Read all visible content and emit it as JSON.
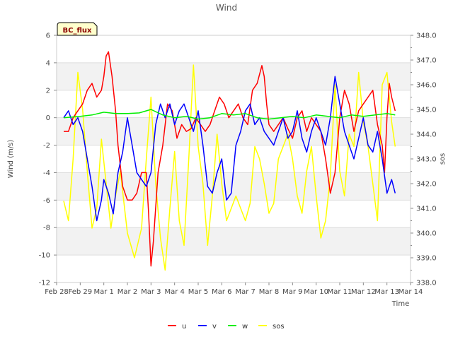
{
  "chart_data": {
    "type": "line",
    "title": "Wind",
    "site_badge": "BC_flux",
    "xlabel": "Time",
    "ylabel_left": "Wind (m/s)",
    "ylabel_right": "sos",
    "ylim_left": [
      -12,
      6
    ],
    "ylim_right": [
      338.0,
      348.0
    ],
    "xlim_days": [
      0,
      15
    ],
    "x_ticks": [
      {
        "day": 0,
        "label": "Feb 28"
      },
      {
        "day": 1,
        "label": "Feb 29"
      },
      {
        "day": 2,
        "label": "Mar 1"
      },
      {
        "day": 3,
        "label": "Mar 2"
      },
      {
        "day": 4,
        "label": "Mar 3"
      },
      {
        "day": 5,
        "label": "Mar 4"
      },
      {
        "day": 6,
        "label": "Mar 5"
      },
      {
        "day": 7,
        "label": "Mar 6"
      },
      {
        "day": 8,
        "label": "Mar 7"
      },
      {
        "day": 9,
        "label": "Mar 8"
      },
      {
        "day": 10,
        "label": "Mar 9"
      },
      {
        "day": 11,
        "label": "Mar 10"
      },
      {
        "day": 12,
        "label": "Mar 11"
      },
      {
        "day": 13,
        "label": "Mar 12"
      },
      {
        "day": 14,
        "label": "Mar 13"
      },
      {
        "day": 15,
        "label": "Mar 14"
      }
    ],
    "y_ticks_left": [
      "-12",
      "-10",
      "-8",
      "-6",
      "-4",
      "-2",
      "0",
      "2",
      "4",
      "6"
    ],
    "y_ticks_right": [
      "338.0",
      "339.0",
      "340.0",
      "341.0",
      "342.0",
      "343.0",
      "344.0",
      "345.0",
      "346.0",
      "347.0",
      "348.0"
    ],
    "series": [
      {
        "name": "u",
        "color": "#ff0000",
        "axis": "left",
        "x": [
          0.3,
          0.5,
          0.7,
          0.9,
          1.1,
          1.3,
          1.5,
          1.7,
          1.9,
          2.0,
          2.1,
          2.2,
          2.35,
          2.5,
          2.6,
          2.8,
          3.0,
          3.2,
          3.4,
          3.6,
          3.8,
          3.9,
          4.0,
          4.1,
          4.3,
          4.5,
          4.7,
          4.9,
          5.1,
          5.3,
          5.5,
          5.7,
          5.9,
          6.1,
          6.3,
          6.5,
          6.7,
          6.9,
          7.1,
          7.3,
          7.5,
          7.7,
          7.9,
          8.1,
          8.3,
          8.5,
          8.7,
          8.8,
          8.9,
          9.0,
          9.2,
          9.4,
          9.6,
          9.8,
          10.0,
          10.2,
          10.4,
          10.6,
          10.8,
          11.0,
          11.2,
          11.4,
          11.6,
          11.8,
          12.0,
          12.2,
          12.4,
          12.6,
          12.8,
          13.0,
          13.2,
          13.4,
          13.6,
          13.8,
          13.9,
          14.0,
          14.1,
          14.2,
          14.35
        ],
        "y": [
          -1,
          -1,
          0,
          0.5,
          1,
          2,
          2.5,
          1.5,
          2,
          3,
          4.5,
          4.8,
          3,
          0.5,
          -2,
          -5,
          -6,
          -6,
          -5.5,
          -4,
          -4,
          -7,
          -10.8,
          -9,
          -4,
          -2,
          1,
          0.5,
          -1.5,
          -0.5,
          -1,
          -0.8,
          0,
          -0.5,
          -1,
          -0.5,
          0.5,
          1.5,
          1,
          0,
          0.5,
          1,
          0,
          -0.5,
          2,
          2.5,
          3.8,
          3,
          1,
          -0.5,
          -1,
          -0.5,
          0,
          -0.8,
          -1.5,
          0,
          0.5,
          -1,
          0,
          -0.5,
          -1,
          -3,
          -5.5,
          -4,
          0,
          2,
          1,
          -1,
          0.5,
          1,
          1.5,
          2,
          -0.5,
          -2,
          -4,
          0,
          2.5,
          1.5,
          0.5
        ]
      },
      {
        "name": "v",
        "color": "#0000ff",
        "axis": "left",
        "x": [
          0.3,
          0.5,
          0.7,
          0.9,
          1.1,
          1.3,
          1.5,
          1.7,
          1.9,
          2.0,
          2.2,
          2.4,
          2.6,
          2.8,
          3.0,
          3.2,
          3.4,
          3.6,
          3.8,
          4.0,
          4.2,
          4.4,
          4.6,
          4.8,
          5.0,
          5.2,
          5.4,
          5.6,
          5.8,
          6.0,
          6.2,
          6.4,
          6.6,
          6.8,
          7.0,
          7.2,
          7.4,
          7.6,
          7.8,
          8.0,
          8.2,
          8.4,
          8.6,
          8.8,
          9.0,
          9.2,
          9.4,
          9.6,
          9.8,
          10.0,
          10.2,
          10.4,
          10.6,
          10.8,
          11.0,
          11.2,
          11.4,
          11.6,
          11.8,
          12.0,
          12.2,
          12.4,
          12.6,
          12.8,
          13.0,
          13.2,
          13.4,
          13.6,
          13.8,
          14.0,
          14.2,
          14.35
        ],
        "y": [
          0,
          0.5,
          -0.5,
          0,
          -1,
          -3,
          -5,
          -7.5,
          -6,
          -4.5,
          -5.5,
          -7,
          -4,
          -2.5,
          0,
          -2,
          -4,
          -4.5,
          -5,
          -4,
          -0.5,
          1,
          0,
          1,
          -0.5,
          0.5,
          1,
          0,
          -1,
          0.5,
          -2,
          -5,
          -5.5,
          -4,
          -3,
          -6,
          -5.5,
          -2,
          -1,
          0.5,
          1,
          -0.5,
          0,
          -1,
          -1.5,
          -2,
          -1,
          0,
          -1.5,
          -1,
          0.5,
          -1.5,
          -2.5,
          -1,
          0,
          -1,
          -2,
          0,
          3,
          1,
          -1,
          -2,
          -3,
          -1.5,
          0,
          -2,
          -2.5,
          -1,
          -3,
          -5.5,
          -4.5,
          -5.5
        ]
      },
      {
        "name": "w",
        "color": "#00ee00",
        "axis": "left",
        "x": [
          0.3,
          1,
          1.5,
          2,
          2.5,
          3,
          3.5,
          4,
          4.5,
          5,
          5.5,
          6,
          6.5,
          7,
          7.5,
          8,
          8.5,
          9,
          9.5,
          10,
          10.5,
          11,
          11.5,
          12,
          12.5,
          13,
          13.5,
          14,
          14.35
        ],
        "y": [
          0,
          0.1,
          0.2,
          0.4,
          0.3,
          0.3,
          0.35,
          0.6,
          0.2,
          0,
          0.1,
          -0.1,
          0,
          0.3,
          0.2,
          0.3,
          0,
          -0.1,
          0,
          0.1,
          0,
          0.2,
          0.1,
          0,
          0.2,
          0.1,
          0.2,
          0.3,
          0.2
        ]
      },
      {
        "name": "sos",
        "color": "#ffff00",
        "axis": "right",
        "x": [
          0.3,
          0.5,
          0.7,
          0.9,
          1.1,
          1.3,
          1.5,
          1.7,
          1.9,
          2.1,
          2.3,
          2.5,
          2.7,
          3.0,
          3.3,
          3.6,
          3.8,
          4.0,
          4.2,
          4.4,
          4.6,
          4.8,
          5.0,
          5.2,
          5.4,
          5.6,
          5.8,
          6.0,
          6.2,
          6.4,
          6.6,
          6.8,
          7.0,
          7.2,
          7.4,
          7.6,
          7.8,
          8.0,
          8.2,
          8.4,
          8.6,
          8.8,
          9.0,
          9.2,
          9.4,
          9.6,
          9.8,
          10.0,
          10.2,
          10.4,
          10.6,
          10.8,
          11.0,
          11.2,
          11.4,
          11.6,
          11.8,
          12.0,
          12.2,
          12.4,
          12.6,
          12.8,
          13.0,
          13.2,
          13.4,
          13.6,
          13.8,
          14.0,
          14.2,
          14.35
        ],
        "y": [
          341.3,
          340.5,
          343.0,
          346.5,
          345.0,
          342.5,
          340.2,
          341.0,
          343.8,
          342.0,
          340.2,
          341.5,
          342.5,
          340.0,
          339.0,
          340.2,
          343.0,
          345.5,
          342.0,
          339.8,
          338.5,
          341.0,
          343.3,
          340.5,
          339.5,
          343.0,
          346.8,
          343.5,
          342.0,
          339.5,
          341.5,
          344.0,
          342.0,
          340.5,
          341.0,
          341.5,
          341.0,
          340.5,
          341.2,
          343.5,
          343.0,
          342.0,
          340.8,
          341.2,
          343.0,
          343.5,
          344.0,
          343.0,
          341.5,
          340.8,
          342.5,
          343.5,
          341.5,
          339.8,
          340.5,
          342.3,
          346.0,
          342.5,
          341.5,
          344.0,
          343.5,
          346.5,
          344.5,
          343.5,
          342.0,
          340.5,
          346.0,
          346.5,
          344.5,
          343.5
        ]
      }
    ]
  }
}
